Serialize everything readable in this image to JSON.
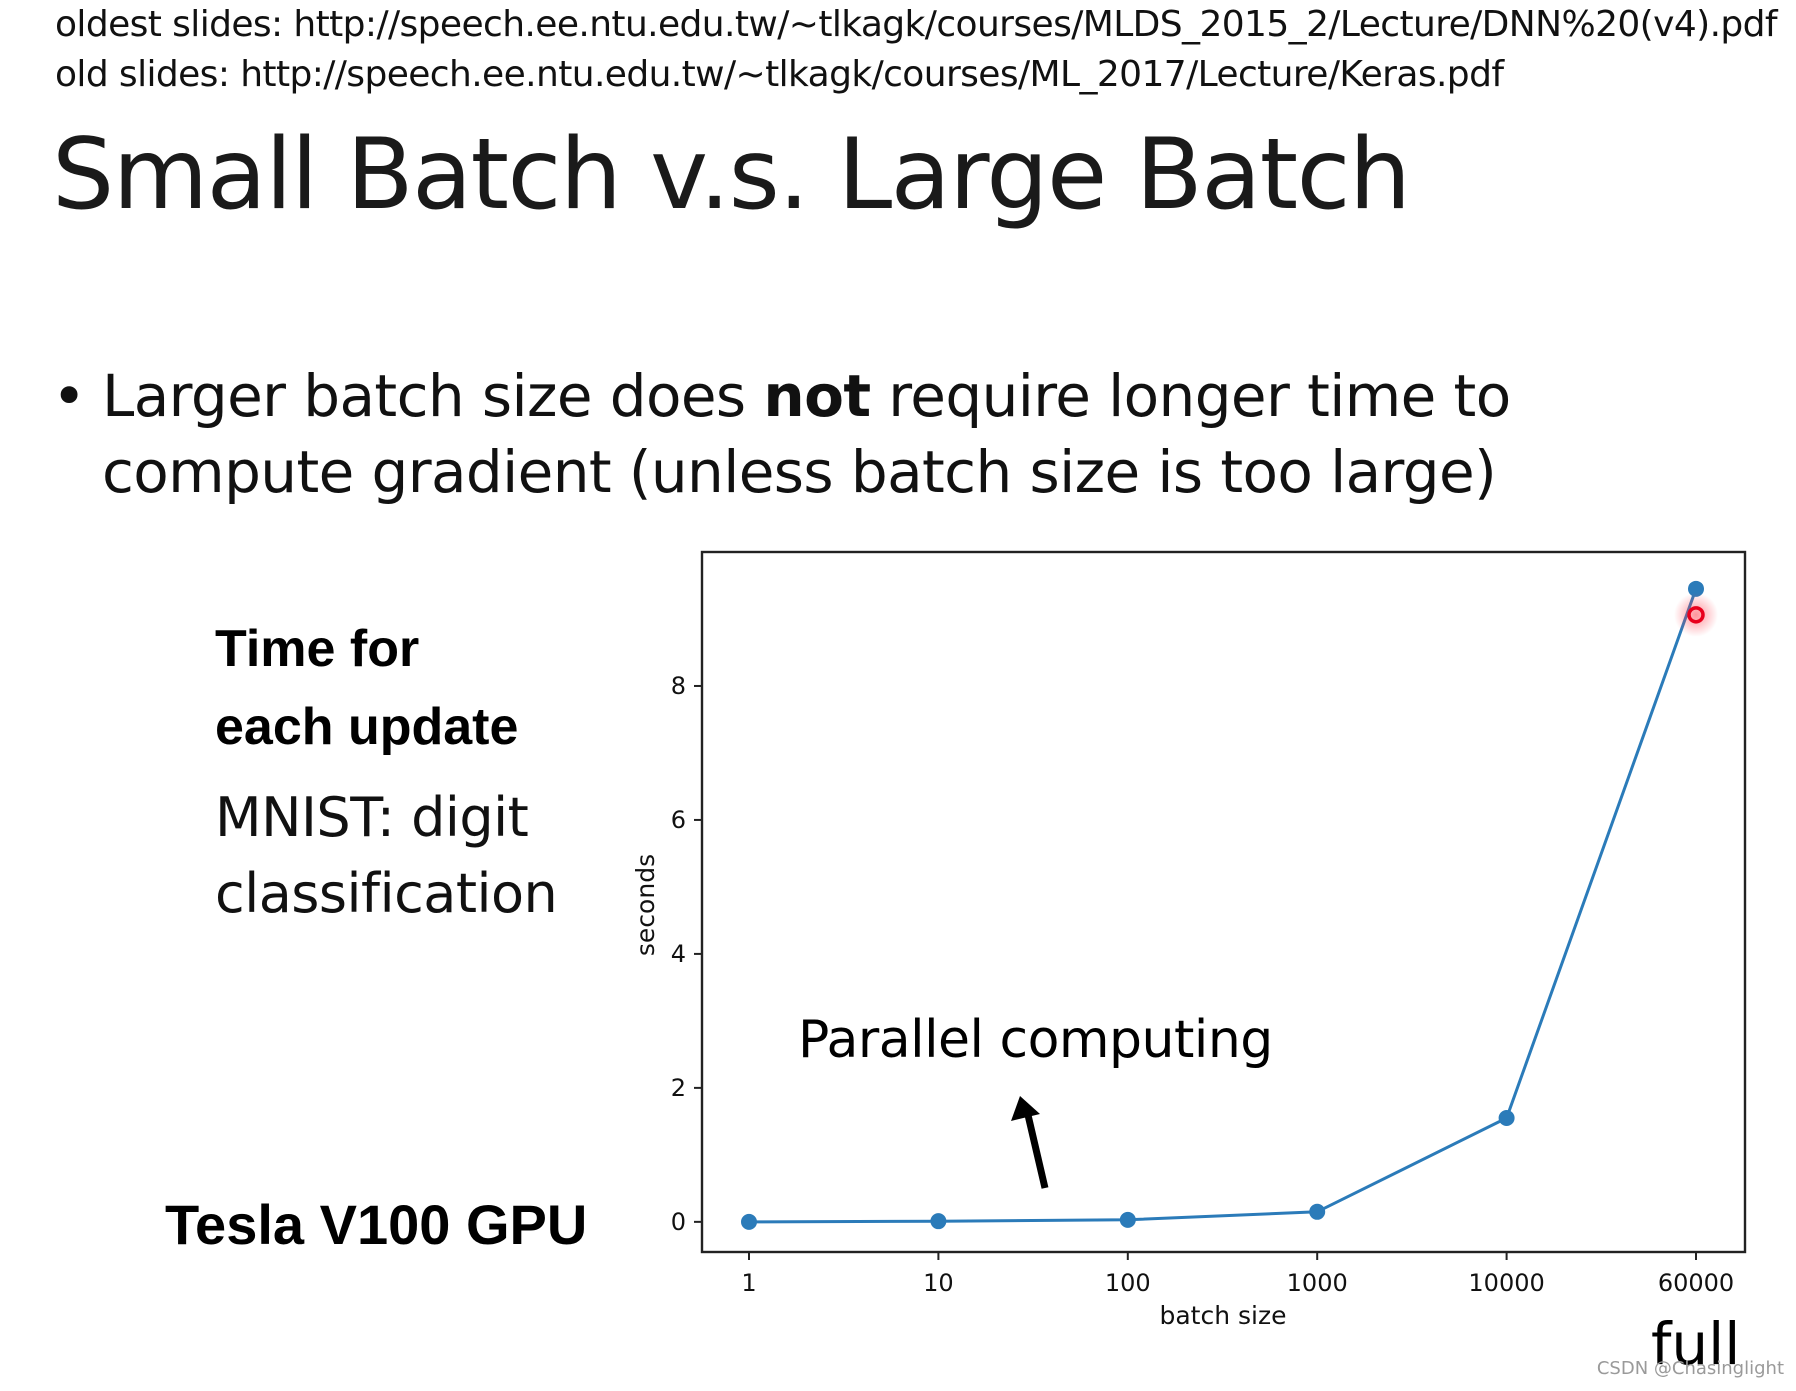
{
  "header": {
    "oldest_slides": "oldest slides: http://speech.ee.ntu.edu.tw/~tlkagk/courses/MLDS_2015_2/Lecture/DNN%20(v4).pdf",
    "old_slides": "old slides: http://speech.ee.ntu.edu.tw/~tlkagk/courses/ML_2017/Lecture/Keras.pdf"
  },
  "title": "Small Batch v.s. Large Batch",
  "bullet": {
    "dot": "•",
    "part1": "Larger batch size does ",
    "bold": "not",
    "part2": " require longer time to",
    "line2": "compute gradient  (unless batch size is too large)"
  },
  "side": {
    "time_line1": "Time for",
    "time_line2": "each update",
    "mnist_line1": "MNIST: digit",
    "mnist_line2": "classification",
    "gpu": "Tesla V100 GPU"
  },
  "annotation": {
    "parallel": "Parallel computing",
    "full": "full"
  },
  "watermark": "CSDN @Chasinglight",
  "chart_data": {
    "type": "line",
    "categories": [
      "1",
      "10",
      "100",
      "1000",
      "10000",
      "60000"
    ],
    "values": [
      0.0,
      0.01,
      0.03,
      0.15,
      1.55,
      9.45
    ],
    "xlabel": "batch size",
    "ylabel": "seconds",
    "ylim": [
      -0.45,
      10.0
    ],
    "yticks": [
      0,
      2,
      4,
      6,
      8
    ],
    "grid": false,
    "highlight_index": 5,
    "line_color": "#2b7bb9",
    "highlight_color": "#e8001c"
  }
}
